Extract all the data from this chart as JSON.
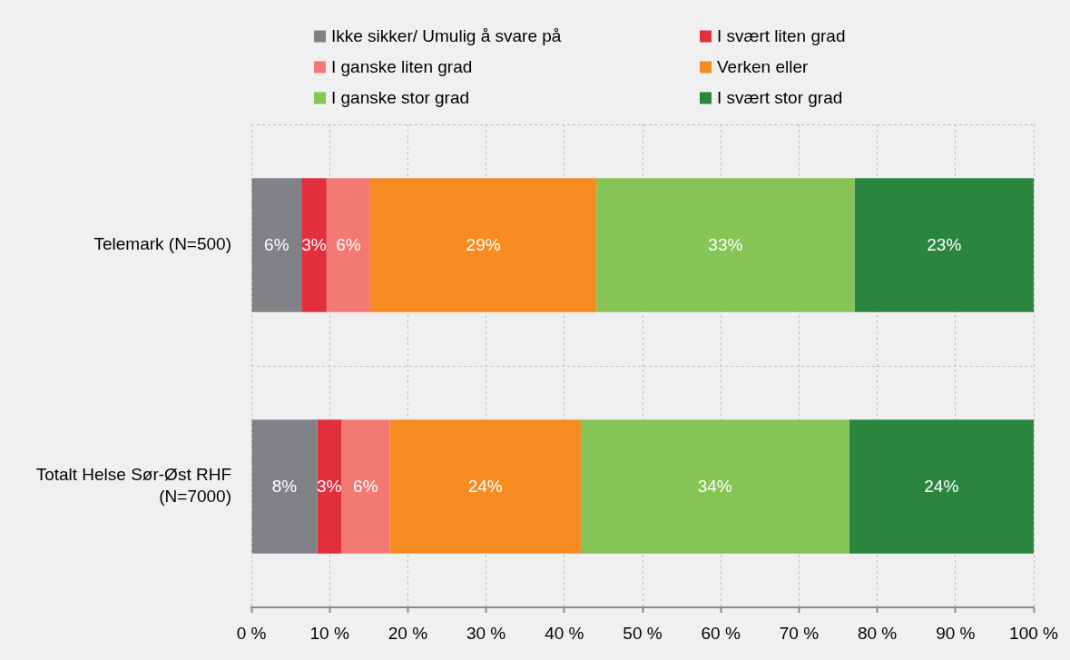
{
  "chart_data": {
    "type": "bar",
    "orientation": "horizontal",
    "stacked": true,
    "categories": [
      "Telemark (N=500)",
      "Totalt Helse Sør-Øst RHF (N=7000)"
    ],
    "series": [
      {
        "name": "Ikke sikker/ Umulig å svare på",
        "color": "#808285",
        "values": [
          6.4,
          8.4
        ],
        "value_labels": [
          "6%",
          "8%"
        ]
      },
      {
        "name": "I svært liten grad",
        "color": "#e12f3c",
        "values": [
          3.2,
          3.1
        ],
        "value_labels": [
          "3%",
          "3%"
        ]
      },
      {
        "name": "I ganske liten grad",
        "color": "#f37a73",
        "values": [
          5.6,
          6.2
        ],
        "value_labels": [
          "6%",
          "6%"
        ]
      },
      {
        "name": "Verken eller",
        "color": "#f68b22",
        "values": [
          28.9,
          24.4
        ],
        "value_labels": [
          "29%",
          "24%"
        ]
      },
      {
        "name": "I ganske stor grad",
        "color": "#86c455",
        "values": [
          33.0,
          34.3
        ],
        "value_labels": [
          "33%",
          "34%"
        ]
      },
      {
        "name": "I svært stor grad",
        "color": "#2a853f",
        "values": [
          22.9,
          23.6
        ],
        "value_labels": [
          "23%",
          "24%"
        ]
      }
    ],
    "xlim": [
      0,
      100
    ],
    "xticks": [
      {
        "value": 0,
        "label": "0 %"
      },
      {
        "value": 10,
        "label": "10 %"
      },
      {
        "value": 20,
        "label": "20 %"
      },
      {
        "value": 30,
        "label": "30 %"
      },
      {
        "value": 40,
        "label": "40 %"
      },
      {
        "value": 50,
        "label": "50 %"
      },
      {
        "value": 60,
        "label": "60 %"
      },
      {
        "value": 70,
        "label": "70 %"
      },
      {
        "value": 80,
        "label": "80 %"
      },
      {
        "value": 90,
        "label": "90 %"
      },
      {
        "value": 100,
        "label": "100 %"
      }
    ],
    "grid": true,
    "legend": "top"
  }
}
